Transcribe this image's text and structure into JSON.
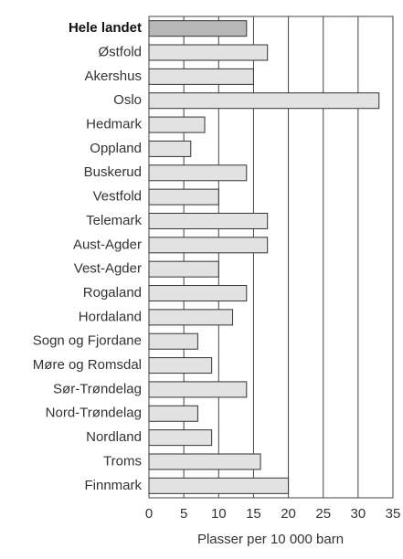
{
  "chart_data": {
    "type": "barh",
    "xlabel": "Plasser per 10 000 barn",
    "categories": [
      "Hele landet",
      "Østfold",
      "Akershus",
      "Oslo",
      "Hedmark",
      "Oppland",
      "Buskerud",
      "Vestfold",
      "Telemark",
      "Aust-Agder",
      "Vest-Agder",
      "Rogaland",
      "Hordaland",
      "Sogn og Fjordane",
      "Møre og Romsdal",
      "Sør-Trøndelag",
      "Nord-Trøndelag",
      "Nordland",
      "Troms",
      "Finnmark"
    ],
    "values": [
      14,
      17,
      15,
      33,
      8,
      6,
      14,
      10,
      17,
      17,
      10,
      14,
      12,
      7,
      9,
      14,
      7,
      9,
      16,
      20
    ],
    "color": "#e2e2e2",
    "highlight_color": "#b8b8b8",
    "xlim": [
      0,
      35
    ],
    "xticks": [
      0,
      5,
      10,
      15,
      20,
      25,
      30,
      35
    ],
    "grid": true
  }
}
